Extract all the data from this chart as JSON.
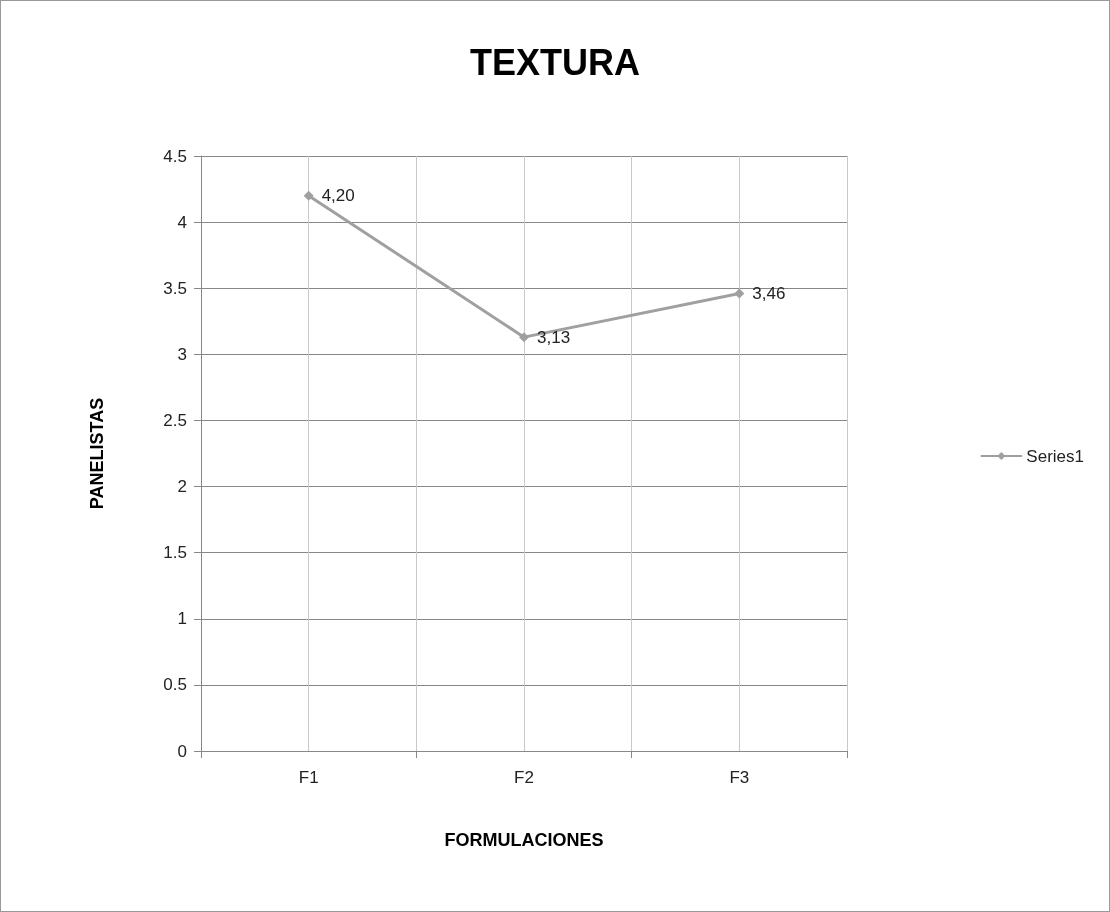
{
  "chart_data": {
    "type": "line",
    "title": "TEXTURA",
    "xlabel": "FORMULACIONES",
    "ylabel": "PANELISTAS",
    "categories": [
      "F1",
      "F2",
      "F3"
    ],
    "series": [
      {
        "name": "Series1",
        "color": "#a0a0a0",
        "values": [
          4.2,
          3.13,
          3.46
        ],
        "value_labels": [
          "4,20",
          "3,13",
          "3,46"
        ]
      }
    ],
    "ylim": [
      0,
      4.5
    ],
    "yticks": [
      0,
      0.5,
      1,
      1.5,
      2,
      2.5,
      3,
      3.5,
      4,
      4.5
    ],
    "grid": true,
    "legend": "right",
    "marker": "diamond",
    "line_style": "solid"
  }
}
